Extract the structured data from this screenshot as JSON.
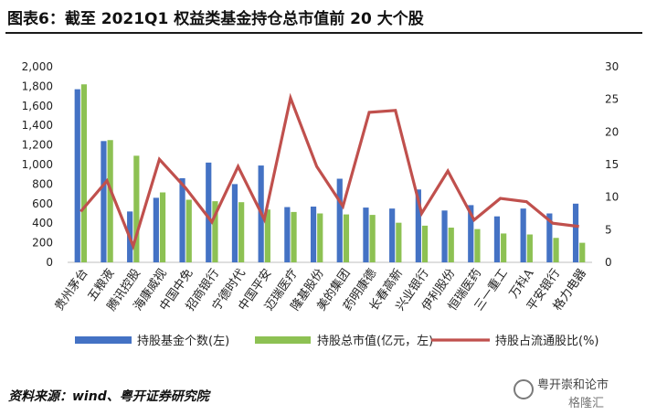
{
  "header": {
    "title": "图表6：截至 2021Q1 权益类基金持仓总市值前 20 大个股"
  },
  "footer": {
    "source": "资料来源：wind、粤开证券研究院"
  },
  "watermark": {
    "line1": "粤开崇和论市",
    "line2": "格隆汇"
  },
  "colors": {
    "series_fund_count": "#4472C4",
    "series_market_value": "#8DC153",
    "series_ratio": "#C0504D"
  },
  "chart_data": {
    "type": "bar",
    "categories": [
      "贵州茅台",
      "五粮液",
      "腾讯控股",
      "海康威视",
      "中国中免",
      "招商银行",
      "宁德时代",
      "中国平安",
      "迈瑞医疗",
      "隆基股份",
      "美的集团",
      "药明康德",
      "长春高新",
      "兴业银行",
      "伊利股份",
      "恒瑞医药",
      "三一重工",
      "万科A",
      "平安银行",
      "格力电器"
    ],
    "series": [
      {
        "name": "持股基金个数(左)",
        "type": "bar",
        "axis": "left",
        "values": [
          1770,
          1240,
          520,
          660,
          860,
          1020,
          800,
          990,
          565,
          570,
          855,
          560,
          550,
          745,
          530,
          585,
          470,
          550,
          500,
          600
        ]
      },
      {
        "name": "持股总市值(亿元，左)",
        "type": "bar",
        "axis": "left",
        "values": [
          1820,
          1250,
          1090,
          715,
          640,
          625,
          615,
          540,
          515,
          500,
          490,
          485,
          405,
          375,
          355,
          340,
          295,
          285,
          250,
          200
        ]
      },
      {
        "name": "持股占流通股比(%)",
        "type": "line",
        "axis": "right",
        "values": [
          7.8,
          12.5,
          2.5,
          15.8,
          11.4,
          6.2,
          14.7,
          6.6,
          25.2,
          14.7,
          8.6,
          23.0,
          23.3,
          7.5,
          14.0,
          6.5,
          9.8,
          9.3,
          6.0,
          5.5
        ]
      }
    ],
    "left_axis": {
      "ticks": [
        "0",
        "200",
        "400",
        "600",
        "800",
        "1,000",
        "1,200",
        "1,400",
        "1,600",
        "1,800",
        "2,000"
      ],
      "ylim": [
        0,
        2000
      ]
    },
    "right_axis": {
      "ticks": [
        "0",
        "5",
        "10",
        "15",
        "20",
        "25",
        "30"
      ],
      "ylim": [
        0,
        30
      ]
    },
    "legend_position": "bottom",
    "grid": false
  }
}
